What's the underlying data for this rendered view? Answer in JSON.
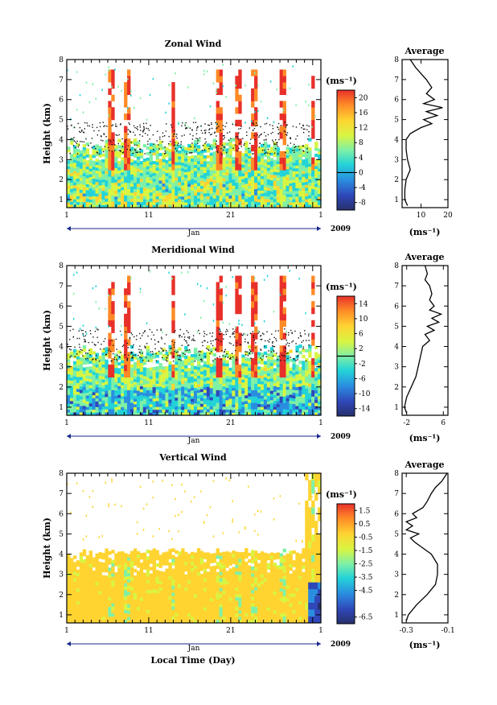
{
  "figure": {
    "x_axis_label": "Local Time (Day)",
    "y_axis_label": "Height (km)",
    "month_label": "Jan",
    "year_label": "2009",
    "x_tick_labels": [
      "1",
      "11",
      "21",
      "1"
    ],
    "y_tick_labels": [
      "1",
      "2",
      "3",
      "4",
      "5",
      "6",
      "7",
      "8"
    ],
    "unit_label": "(ms⁻¹)",
    "profile_title": "Average"
  },
  "chart_data": [
    {
      "type": "heatmap",
      "title": "Zonal Wind",
      "xlabel": "",
      "ylabel": "Height (km)",
      "x_range_days": [
        1,
        32
      ],
      "ylim": [
        0.6,
        8
      ],
      "colorbar": {
        "unit": "(ms⁻¹)",
        "ticks": [
          -8,
          -4,
          0,
          4,
          8,
          12,
          16,
          20
        ],
        "range": [
          -10,
          22
        ],
        "zero_line": 0
      },
      "profile": {
        "title": "Average",
        "xlabel": "(ms⁻¹)",
        "xlim": [
          3,
          20
        ],
        "xticks": [
          10,
          20
        ],
        "height": [
          0.7,
          1.0,
          1.5,
          2.0,
          2.5,
          3.0,
          3.5,
          4.0,
          4.3,
          4.6,
          4.8,
          5.0,
          5.2,
          5.4,
          5.6,
          5.8,
          6.0,
          6.3,
          6.6,
          7.0,
          7.3,
          7.6,
          8.0
        ],
        "value": [
          5,
          4,
          4,
          4.5,
          6,
          5,
          4.5,
          4.5,
          6,
          10,
          14,
          11,
          16,
          12,
          18,
          11,
          15,
          12,
          14,
          12,
          10,
          8,
          6
        ]
      }
    },
    {
      "type": "heatmap",
      "title": "Meridional Wind",
      "xlabel": "",
      "ylabel": "Height (km)",
      "x_range_days": [
        1,
        32
      ],
      "ylim": [
        0.6,
        8
      ],
      "colorbar": {
        "unit": "(ms⁻¹)",
        "ticks": [
          -14,
          -10,
          -6,
          -2,
          2,
          6,
          10,
          14
        ],
        "range": [
          -16,
          16
        ],
        "zero_line": 0
      },
      "profile": {
        "title": "Average",
        "xlabel": "(ms⁻¹)",
        "xlim": [
          -3,
          7
        ],
        "xticks": [
          -2,
          6
        ],
        "height": [
          0.7,
          1.0,
          1.5,
          2.0,
          2.5,
          3.0,
          3.5,
          4.0,
          4.3,
          4.6,
          4.8,
          5.0,
          5.2,
          5.4,
          5.6,
          5.8,
          6.0,
          6.3,
          6.6,
          7.0,
          7.3,
          7.6,
          8.0
        ],
        "value": [
          -2,
          -2.5,
          -2,
          -1,
          0,
          0.5,
          1,
          1.5,
          3,
          2,
          4,
          2.5,
          5,
          3.5,
          5.5,
          3,
          4,
          3,
          3.5,
          3,
          2,
          2.5,
          2
        ]
      }
    },
    {
      "type": "heatmap",
      "title": "Vertical Wind",
      "xlabel": "Local Time (Day)",
      "ylabel": "Height (km)",
      "x_range_days": [
        1,
        32
      ],
      "ylim": [
        0.6,
        8
      ],
      "colorbar": {
        "unit": "(ms⁻¹)",
        "ticks": [
          -6.5,
          -4.5,
          -3.5,
          -2.5,
          -1.5,
          -0.5,
          0.5,
          1.5
        ],
        "range": [
          -7,
          2
        ],
        "zero_line": null
      },
      "profile": {
        "title": "Average",
        "xlabel": "(ms⁻¹)",
        "xlim": [
          -0.32,
          -0.1
        ],
        "xticks": [
          -0.3,
          -0.1
        ],
        "height": [
          0.7,
          1.0,
          1.5,
          2.0,
          2.5,
          3.0,
          3.5,
          4.0,
          4.3,
          4.6,
          4.8,
          5.0,
          5.2,
          5.4,
          5.6,
          5.8,
          6.0,
          6.3,
          6.6,
          7.0,
          7.3,
          7.6,
          8.0
        ],
        "value": [
          -0.3,
          -0.29,
          -0.25,
          -0.2,
          -0.16,
          -0.15,
          -0.15,
          -0.18,
          -0.22,
          -0.26,
          -0.28,
          -0.24,
          -0.3,
          -0.27,
          -0.3,
          -0.25,
          -0.27,
          -0.22,
          -0.2,
          -0.18,
          -0.16,
          -0.13,
          -0.1
        ]
      }
    }
  ]
}
